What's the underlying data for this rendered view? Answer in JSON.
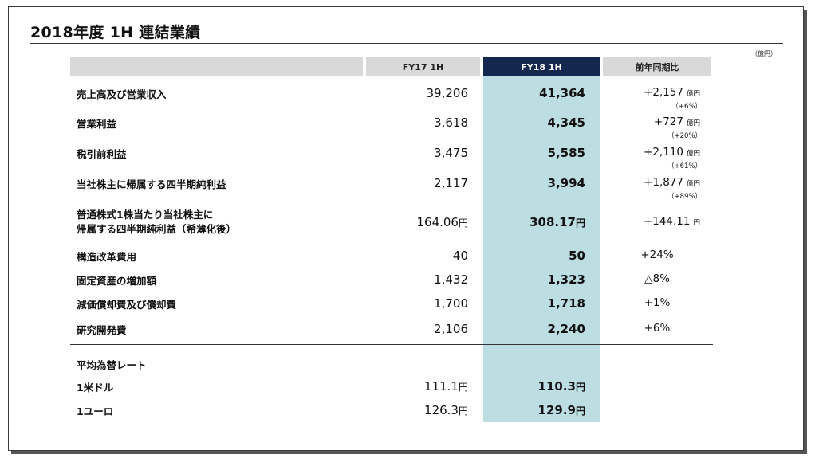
{
  "title": "2018年度 1H 連結業績",
  "unit_note": "（億円）",
  "headers": {
    "fy17": "FY17 1H",
    "fy18": "FY18 1H",
    "yoy": "前年同期比"
  },
  "rows": [
    {
      "label": "売上高及び営業収入",
      "fy17": "39,206",
      "fy18": "41,364",
      "yoy": "+2,157",
      "yoy_unit": "億円",
      "yoy_pct": "（+6%）"
    },
    {
      "label": "営業利益",
      "fy17": "3,618",
      "fy18": "4,345",
      "yoy": "+727",
      "yoy_unit": "億円",
      "yoy_pct": "（+20%）"
    },
    {
      "label": "税引前利益",
      "fy17": "3,475",
      "fy18": "5,585",
      "yoy": "+2,110",
      "yoy_unit": "億円",
      "yoy_pct": "（+61%）"
    },
    {
      "label": "当社株主に帰属する四半期純利益",
      "fy17": "2,117",
      "fy18": "3,994",
      "yoy": "+1,877",
      "yoy_unit": "億円",
      "yoy_pct": "（+89%）"
    },
    {
      "label_line1": "普通株式1株当たり当社株主に",
      "label_line2": "帰属する四半期純利益（希薄化後）",
      "fy17": "164.06",
      "fy18": "308.17",
      "yen": "円",
      "yoy": "+144.11",
      "yoy_unit": "円"
    }
  ],
  "rows2": [
    {
      "label": "構造改革費用",
      "fy17": "40",
      "fy18": "50",
      "yoy": "+24%"
    },
    {
      "label": "固定資産の増加額",
      "fy17": "1,432",
      "fy18": "1,323",
      "yoy": "△8%"
    },
    {
      "label": "減価償却費及び償却費",
      "fy17": "1,700",
      "fy18": "1,718",
      "yoy": "+1%"
    },
    {
      "label": "研究開発費",
      "fy17": "2,106",
      "fy18": "2,240",
      "yoy": "+6%"
    }
  ],
  "fx": {
    "heading": "平均為替レート",
    "rows": [
      {
        "label": "1米ドル",
        "fy17": "111.1",
        "fy18": "110.3",
        "yen": "円"
      },
      {
        "label": "1ユーロ",
        "fy17": "126.3",
        "fy18": "129.9",
        "yen": "円"
      }
    ]
  }
}
